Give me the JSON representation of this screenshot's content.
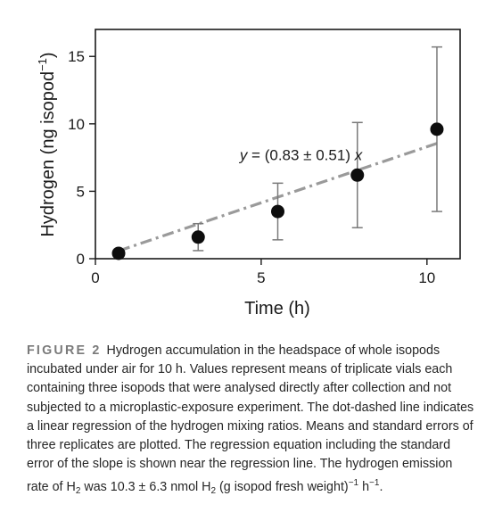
{
  "chart_data": {
    "type": "scatter",
    "xlabel": "Time (h)",
    "ylabel": "Hydrogen (ng isopod",
    "ylabel_sup": "−1",
    "ylabel_end": ")",
    "xlim": [
      0,
      11
    ],
    "ylim": [
      0,
      17
    ],
    "xticks": [
      0,
      5,
      10
    ],
    "yticks": [
      0,
      5,
      10,
      15
    ],
    "grid": false,
    "points": [
      {
        "x": 0.7,
        "y": 0.4,
        "err": 0.0
      },
      {
        "x": 3.1,
        "y": 1.6,
        "err": 1.0
      },
      {
        "x": 5.5,
        "y": 3.5,
        "err": 2.1
      },
      {
        "x": 7.9,
        "y": 6.2,
        "err": 3.9
      },
      {
        "x": 10.3,
        "y": 9.6,
        "err": 6.1
      }
    ],
    "regression": {
      "slope": 0.83,
      "x_range": [
        0.7,
        10.3
      ]
    },
    "annotation": {
      "var": "y",
      "text": " = (0.83 ± 0.51) ",
      "var2": "x",
      "anchor_x": 6.2,
      "anchor_y": 7.3
    }
  },
  "caption": {
    "label": "FIGURE 2",
    "part1": "Hydrogen accumulation in the headspace of whole isopods incubated under air for 10 h. Values represent means of triplicate vials each containing three isopods that were analysed directly after collection and not subjected to a microplastic-exposure experiment. The dot-dashed line indicates a linear regression of the hydrogen mixing ratios. Means and standard errors of three replicates are plotted. The regression equation including the standard error of the slope is shown near the regression line. The hydrogen emission rate of H",
    "sub1": "2",
    "part2": " was 10.3 ± 6.3 nmol H",
    "sub2": "2",
    "part3": " (g isopod fresh weight)",
    "sup1": "−1",
    "part4": " h",
    "sup2": "−1",
    "part5": "."
  }
}
